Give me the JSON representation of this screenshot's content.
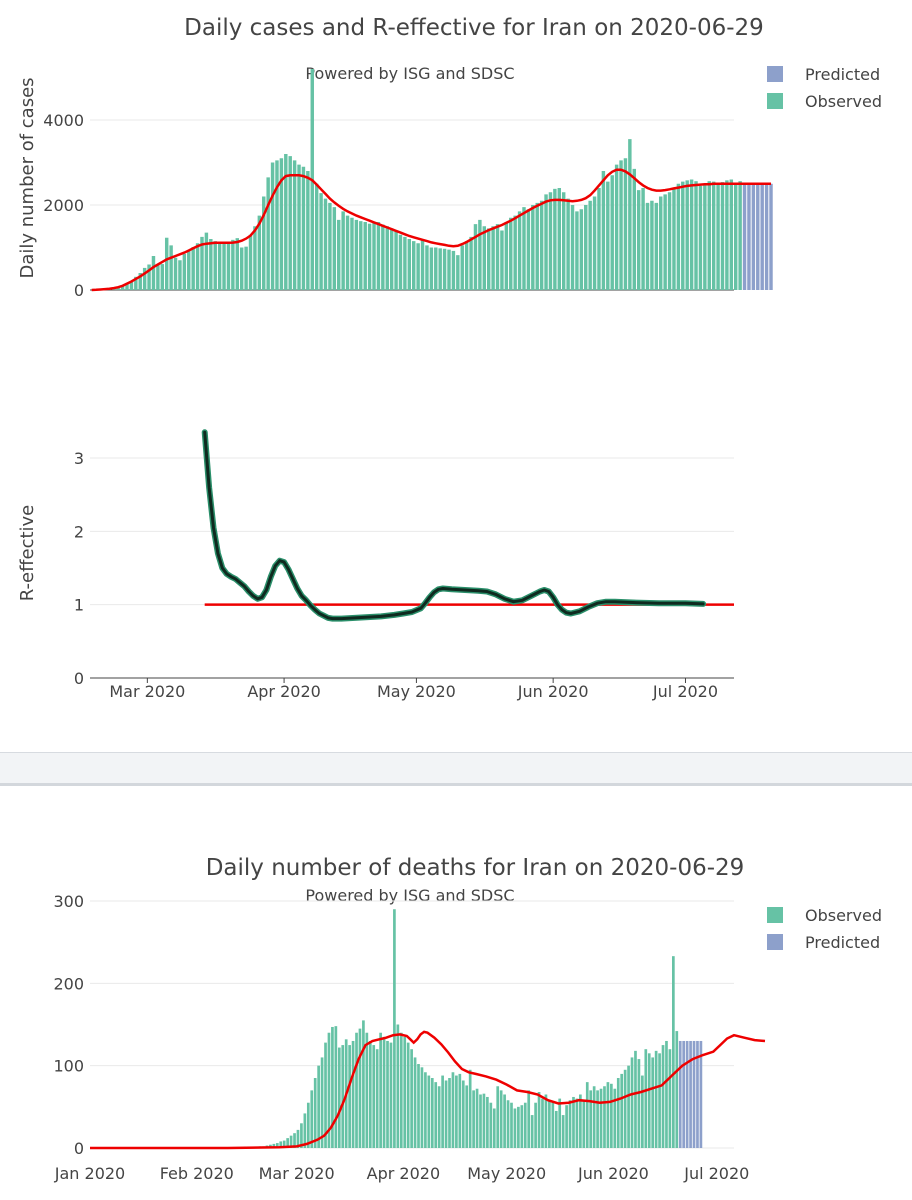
{
  "colors": {
    "observed": "#66c2a5",
    "predicted": "#8da0cb",
    "trend": "#ee0000",
    "reff": "#0f2a1f",
    "reff_band": "#2a8f6a"
  },
  "chart_data": [
    {
      "type": "bar",
      "title": "Daily cases and R-effective for Iran on 2020-06-29",
      "subtitle": "Powered by ISG and SDSC",
      "xlabel": "",
      "ylabel": "Daily number of cases",
      "ylim": [
        0,
        5000
      ],
      "yticks": [
        "0",
        "2000",
        "4000"
      ],
      "ytick_values": [
        0,
        2000,
        4000
      ],
      "legend": [
        {
          "label": "Predicted",
          "color": "#8da0cb"
        },
        {
          "label": "Observed",
          "color": "#66c2a5"
        }
      ],
      "x_start_day": 0,
      "observed_values": [
        0,
        5,
        10,
        15,
        20,
        40,
        60,
        100,
        150,
        210,
        310,
        400,
        520,
        600,
        800,
        600,
        610,
        1230,
        1050,
        760,
        700,
        850,
        930,
        1010,
        1100,
        1250,
        1350,
        1200,
        1150,
        1100,
        1120,
        1140,
        1180,
        1220,
        1000,
        1020,
        1300,
        1500,
        1750,
        2200,
        2650,
        3000,
        3050,
        3100,
        3200,
        3150,
        3050,
        2950,
        2900,
        2800,
        5200,
        2500,
        2280,
        2150,
        2050,
        1950,
        1650,
        1850,
        1750,
        1700,
        1650,
        1620,
        1600,
        1560,
        1580,
        1600,
        1540,
        1500,
        1450,
        1380,
        1300,
        1250,
        1200,
        1150,
        1100,
        1200,
        1050,
        1000,
        1000,
        980,
        970,
        950,
        920,
        820,
        1050,
        1150,
        1250,
        1550,
        1650,
        1500,
        1450,
        1500,
        1550,
        1400,
        1600,
        1700,
        1750,
        1850,
        1950,
        1900,
        2000,
        2050,
        2100,
        2250,
        2300,
        2380,
        2400,
        2300,
        2150,
        2000,
        1850,
        1900,
        2000,
        2100,
        2200,
        2400,
        2800,
        2550,
        2700,
        2950,
        3050,
        3100,
        3550,
        2850,
        2350,
        2400,
        2050,
        2100,
        2050,
        2200,
        2250,
        2300,
        2400,
        2500,
        2550,
        2580,
        2600,
        2560,
        2450,
        2500,
        2560,
        2550,
        2520,
        2540,
        2580,
        2600,
        2500,
        2560
      ],
      "predicted_values": [
        2500,
        2500,
        2500,
        2500,
        2500,
        2500,
        2500
      ],
      "trend_values": [
        0,
        5,
        12,
        20,
        30,
        45,
        65,
        100,
        150,
        200,
        260,
        320,
        390,
        460,
        540,
        600,
        660,
        720,
        760,
        800,
        840,
        880,
        930,
        980,
        1030,
        1070,
        1090,
        1100,
        1110,
        1110,
        1110,
        1110,
        1115,
        1130,
        1160,
        1210,
        1280,
        1400,
        1560,
        1760,
        2000,
        2220,
        2420,
        2580,
        2680,
        2700,
        2700,
        2700,
        2680,
        2640,
        2580,
        2480,
        2370,
        2260,
        2150,
        2060,
        1980,
        1910,
        1850,
        1800,
        1750,
        1710,
        1670,
        1630,
        1590,
        1550,
        1510,
        1470,
        1430,
        1390,
        1350,
        1310,
        1270,
        1240,
        1210,
        1180,
        1150,
        1120,
        1100,
        1080,
        1060,
        1040,
        1030,
        1040,
        1080,
        1130,
        1190,
        1250,
        1310,
        1360,
        1410,
        1450,
        1490,
        1530,
        1580,
        1630,
        1690,
        1750,
        1810,
        1870,
        1930,
        1980,
        2030,
        2080,
        2110,
        2120,
        2120,
        2110,
        2100,
        2090,
        2100,
        2120,
        2160,
        2230,
        2340,
        2460,
        2580,
        2700,
        2780,
        2830,
        2830,
        2790,
        2720,
        2630,
        2540,
        2460,
        2400,
        2360,
        2340,
        2340,
        2350,
        2370,
        2390,
        2410,
        2430,
        2450,
        2460,
        2470,
        2480,
        2490,
        2490,
        2500,
        2500,
        2500,
        2500,
        2500,
        2500,
        2500,
        2500,
        2500,
        2500,
        2500,
        2500,
        2500,
        2500
      ]
    },
    {
      "type": "line",
      "title": "",
      "xlabel": "",
      "ylabel": "R-effective",
      "ylim": [
        0,
        3.4
      ],
      "yticks": [
        "0",
        "1",
        "2",
        "3"
      ],
      "ytick_values": [
        0,
        1,
        2,
        3
      ],
      "x_tick_labels": [
        "Mar 2020",
        "Apr 2020",
        "May 2020",
        "Jun 2020",
        "Jul 2020"
      ],
      "x_tick_days": [
        0,
        31,
        61,
        92,
        122
      ],
      "reference_line": 1,
      "reference_from_day": 13,
      "r_values": [
        [
          13,
          3.35
        ],
        [
          14,
          2.6
        ],
        [
          15,
          2.05
        ],
        [
          16,
          1.7
        ],
        [
          17,
          1.5
        ],
        [
          18,
          1.42
        ],
        [
          19,
          1.38
        ],
        [
          20,
          1.35
        ],
        [
          21,
          1.3
        ],
        [
          22,
          1.25
        ],
        [
          23,
          1.18
        ],
        [
          24,
          1.12
        ],
        [
          25,
          1.08
        ],
        [
          26,
          1.1
        ],
        [
          27,
          1.2
        ],
        [
          28,
          1.38
        ],
        [
          29,
          1.53
        ],
        [
          30,
          1.6
        ],
        [
          31,
          1.58
        ],
        [
          32,
          1.48
        ],
        [
          33,
          1.35
        ],
        [
          34,
          1.22
        ],
        [
          35,
          1.12
        ],
        [
          36,
          1.06
        ],
        [
          37,
          0.99
        ],
        [
          38,
          0.93
        ],
        [
          39,
          0.88
        ],
        [
          40,
          0.85
        ],
        [
          41,
          0.82
        ],
        [
          42,
          0.81
        ],
        [
          44,
          0.81
        ],
        [
          47,
          0.82
        ],
        [
          50,
          0.83
        ],
        [
          53,
          0.84
        ],
        [
          56,
          0.86
        ],
        [
          58,
          0.88
        ],
        [
          60,
          0.9
        ],
        [
          62,
          0.95
        ],
        [
          63,
          1.02
        ],
        [
          64,
          1.1
        ],
        [
          65,
          1.17
        ],
        [
          66,
          1.21
        ],
        [
          67,
          1.22
        ],
        [
          69,
          1.21
        ],
        [
          72,
          1.2
        ],
        [
          75,
          1.19
        ],
        [
          77,
          1.18
        ],
        [
          79,
          1.14
        ],
        [
          81,
          1.08
        ],
        [
          83,
          1.04
        ],
        [
          85,
          1.06
        ],
        [
          87,
          1.12
        ],
        [
          89,
          1.18
        ],
        [
          90,
          1.2
        ],
        [
          91,
          1.18
        ],
        [
          92,
          1.1
        ],
        [
          93,
          1.0
        ],
        [
          94,
          0.93
        ],
        [
          95,
          0.89
        ],
        [
          96,
          0.88
        ],
        [
          98,
          0.91
        ],
        [
          100,
          0.97
        ],
        [
          102,
          1.02
        ],
        [
          104,
          1.04
        ],
        [
          106,
          1.04
        ],
        [
          110,
          1.03
        ],
        [
          116,
          1.02
        ],
        [
          122,
          1.02
        ],
        [
          126,
          1.01
        ]
      ]
    },
    {
      "type": "bar",
      "title": "Daily number of deaths for Iran on 2020-06-29",
      "subtitle": "Powered by ISG and SDSC",
      "xlabel": "",
      "ylabel": "",
      "ylim": [
        0,
        300
      ],
      "yticks": [
        "0",
        "100",
        "200",
        "300"
      ],
      "ytick_values": [
        0,
        100,
        200,
        300
      ],
      "x_tick_labels": [
        "Jan 2020",
        "Feb 2020",
        "Mar 2020",
        "Apr 2020",
        "May 2020",
        "Jun 2020",
        "Jul 2020"
      ],
      "x_tick_days": [
        0,
        31,
        60,
        91,
        121,
        152,
        182
      ],
      "legend": [
        {
          "label": "Observed",
          "color": "#66c2a5"
        },
        {
          "label": "Predicted",
          "color": "#8da0cb"
        }
      ],
      "x_start_day": 49,
      "observed_values": [
        2,
        2,
        3,
        4,
        5,
        6,
        8,
        9,
        12,
        15,
        18,
        22,
        30,
        42,
        55,
        70,
        85,
        100,
        110,
        128,
        140,
        147,
        148,
        122,
        125,
        132,
        125,
        130,
        140,
        145,
        155,
        140,
        130,
        125,
        120,
        140,
        135,
        130,
        128,
        290,
        150,
        140,
        135,
        128,
        120,
        110,
        102,
        98,
        92,
        88,
        85,
        80,
        75,
        88,
        82,
        85,
        92,
        88,
        90,
        82,
        76,
        95,
        70,
        72,
        65,
        66,
        62,
        55,
        48,
        75,
        70,
        65,
        58,
        55,
        48,
        50,
        52,
        55,
        70,
        40,
        55,
        68,
        60,
        65,
        58,
        56,
        45,
        60,
        40,
        52,
        58,
        62,
        60,
        65,
        58,
        80,
        70,
        75,
        70,
        72,
        75,
        80,
        78,
        72,
        85,
        90,
        95,
        100,
        110,
        118,
        108,
        88,
        120,
        115,
        110,
        118,
        115,
        125,
        130,
        120,
        233,
        142
      ],
      "predicted_values": [
        130,
        130,
        130,
        130,
        130,
        130,
        130
      ],
      "trend_values": [
        [
          0,
          0
        ],
        [
          20,
          0
        ],
        [
          40,
          0
        ],
        [
          55,
          1
        ],
        [
          60,
          2
        ],
        [
          63,
          5
        ],
        [
          66,
          10
        ],
        [
          68,
          15
        ],
        [
          70,
          25
        ],
        [
          72,
          40
        ],
        [
          74,
          60
        ],
        [
          76,
          85
        ],
        [
          78,
          108
        ],
        [
          80,
          125
        ],
        [
          82,
          130
        ],
        [
          84,
          132
        ],
        [
          86,
          134
        ],
        [
          88,
          137
        ],
        [
          90,
          138
        ],
        [
          92,
          136
        ],
        [
          93,
          132
        ],
        [
          94,
          128
        ],
        [
          95,
          132
        ],
        [
          96,
          138
        ],
        [
          97,
          141
        ],
        [
          98,
          140
        ],
        [
          100,
          134
        ],
        [
          102,
          126
        ],
        [
          104,
          116
        ],
        [
          106,
          105
        ],
        [
          108,
          96
        ],
        [
          110,
          92
        ],
        [
          112,
          90
        ],
        [
          115,
          87
        ],
        [
          118,
          83
        ],
        [
          121,
          77
        ],
        [
          124,
          70
        ],
        [
          127,
          68
        ],
        [
          130,
          65
        ],
        [
          133,
          58
        ],
        [
          136,
          54
        ],
        [
          139,
          55
        ],
        [
          142,
          58
        ],
        [
          145,
          57
        ],
        [
          148,
          55
        ],
        [
          151,
          56
        ],
        [
          154,
          60
        ],
        [
          157,
          65
        ],
        [
          160,
          68
        ],
        [
          163,
          72
        ],
        [
          166,
          76
        ],
        [
          169,
          88
        ],
        [
          172,
          100
        ],
        [
          175,
          108
        ],
        [
          178,
          113
        ],
        [
          181,
          117
        ],
        [
          183,
          125
        ],
        [
          185,
          133
        ],
        [
          187,
          137
        ],
        [
          190,
          134
        ],
        [
          193,
          131
        ],
        [
          196,
          130
        ]
      ]
    }
  ]
}
